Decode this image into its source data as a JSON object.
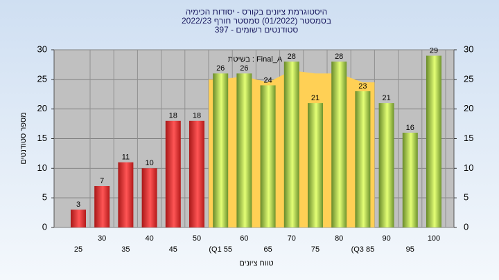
{
  "chart_data": {
    "type": "bar",
    "title_lines": [
      "היסטוגרמת ציונים בקורס - יסודות הכימיה",
      "בסמסטר  (01/2022)  סמסטר חורף 2022/23",
      "397 - סטודנטים רשומים"
    ],
    "annotation": "בשיטת : Final_A",
    "x_label": "טווח ציונים",
    "y_label": "מספר סטודנטים",
    "categories": [
      "25",
      "30",
      "35",
      "40",
      "45",
      "50",
      "(Q1 55",
      "60",
      "65",
      "70",
      "75",
      "80",
      "(Q3 85",
      "90",
      "95",
      "100"
    ],
    "values": [
      3,
      7,
      11,
      10,
      18,
      18,
      26,
      26,
      24,
      28,
      21,
      28,
      23,
      21,
      16,
      29
    ],
    "colors": [
      "#e02020",
      "#e02020",
      "#e02020",
      "#e02020",
      "#e02020",
      "#e02020",
      "#8ab838",
      "#8ab838",
      "#8ab838",
      "#8ab838",
      "#8ab838",
      "#8ab838",
      "#8ab838",
      "#8ab838",
      "#8ab838",
      "#8ab838"
    ],
    "area": {
      "color": "#ffd055",
      "values": [
        null,
        null,
        null,
        null,
        null,
        null,
        25,
        25.5,
        24.5,
        26.5,
        26,
        26,
        24.5,
        null,
        null,
        null
      ]
    },
    "ylim": [
      0,
      30
    ],
    "yticks": [
      0,
      5,
      10,
      15,
      20,
      25,
      30
    ],
    "grid": true
  }
}
